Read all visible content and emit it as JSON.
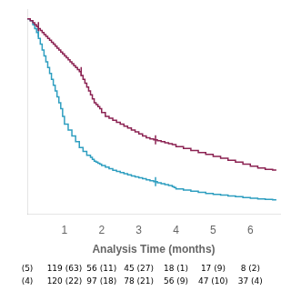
{
  "chart_data": {
    "type": "step",
    "xlabel": "Analysis Time (months)",
    "xlim": [
      0,
      6.8
    ],
    "xticks": [
      1,
      2,
      3,
      4,
      5,
      6
    ],
    "ylim": [
      0,
      1.05
    ],
    "grid": false,
    "tick_labels": "x",
    "series": [
      {
        "color": "#8B2252",
        "x": [
          0.0,
          0.08,
          0.15,
          0.2,
          0.25,
          0.3,
          0.35,
          0.4,
          0.45,
          0.5,
          0.55,
          0.6,
          0.65,
          0.7,
          0.75,
          0.8,
          0.85,
          0.9,
          0.95,
          1.0,
          1.05,
          1.1,
          1.15,
          1.2,
          1.25,
          1.3,
          1.35,
          1.4,
          1.45,
          1.5,
          1.55,
          1.6,
          1.65,
          1.7,
          1.75,
          1.8,
          1.85,
          1.9,
          1.95,
          2.0,
          2.1,
          2.2,
          2.3,
          2.4,
          2.5,
          2.6,
          2.7,
          2.8,
          2.9,
          3.0,
          3.1,
          3.2,
          3.3,
          3.4,
          3.5,
          3.6,
          3.7,
          3.8,
          3.9,
          4.0,
          4.2,
          4.4,
          4.6,
          4.8,
          5.0,
          5.2,
          5.4,
          5.6,
          5.8,
          6.0,
          6.2,
          6.4,
          6.6,
          6.7
        ],
        "values": [
          1.0,
          1.0,
          0.99,
          0.98,
          0.97,
          0.96,
          0.95,
          0.94,
          0.93,
          0.92,
          0.91,
          0.9,
          0.89,
          0.88,
          0.87,
          0.86,
          0.85,
          0.84,
          0.83,
          0.82,
          0.81,
          0.8,
          0.79,
          0.78,
          0.77,
          0.76,
          0.75,
          0.74,
          0.73,
          0.71,
          0.69,
          0.67,
          0.65,
          0.63,
          0.61,
          0.59,
          0.57,
          0.56,
          0.55,
          0.54,
          0.52,
          0.5,
          0.49,
          0.48,
          0.47,
          0.46,
          0.45,
          0.44,
          0.43,
          0.42,
          0.41,
          0.4,
          0.39,
          0.385,
          0.38,
          0.375,
          0.37,
          0.365,
          0.36,
          0.355,
          0.345,
          0.335,
          0.325,
          0.315,
          0.305,
          0.295,
          0.285,
          0.275,
          0.265,
          0.255,
          0.245,
          0.235,
          0.228,
          0.225
        ]
      },
      {
        "color": "#2E9EC0",
        "x": [
          0.0,
          0.08,
          0.15,
          0.2,
          0.25,
          0.3,
          0.35,
          0.4,
          0.45,
          0.5,
          0.55,
          0.6,
          0.65,
          0.7,
          0.75,
          0.8,
          0.85,
          0.9,
          0.95,
          1.0,
          1.1,
          1.2,
          1.3,
          1.4,
          1.5,
          1.6,
          1.7,
          1.75,
          1.8,
          1.85,
          1.9,
          1.95,
          2.0,
          2.1,
          2.2,
          2.3,
          2.4,
          2.5,
          2.6,
          2.7,
          2.8,
          2.9,
          3.0,
          3.1,
          3.2,
          3.3,
          3.4,
          3.5,
          3.6,
          3.7,
          3.8,
          3.9,
          3.95,
          4.0,
          4.2,
          4.4,
          4.6,
          4.8,
          5.0,
          5.2,
          5.4,
          5.6,
          5.8,
          6.0,
          6.2,
          6.4,
          6.6,
          6.7
        ],
        "values": [
          1.0,
          1.0,
          0.99,
          0.97,
          0.95,
          0.93,
          0.9,
          0.87,
          0.84,
          0.81,
          0.78,
          0.75,
          0.72,
          0.69,
          0.66,
          0.63,
          0.6,
          0.57,
          0.54,
          0.5,
          0.46,
          0.43,
          0.4,
          0.37,
          0.34,
          0.32,
          0.3,
          0.29,
          0.28,
          0.27,
          0.265,
          0.26,
          0.255,
          0.248,
          0.24,
          0.232,
          0.224,
          0.218,
          0.212,
          0.206,
          0.2,
          0.195,
          0.19,
          0.185,
          0.18,
          0.175,
          0.17,
          0.165,
          0.16,
          0.155,
          0.15,
          0.145,
          0.14,
          0.135,
          0.128,
          0.122,
          0.116,
          0.11,
          0.105,
          0.1,
          0.096,
          0.092,
          0.088,
          0.084,
          0.08,
          0.077,
          0.074,
          0.072
        ]
      },
      {
        "type": "scatter",
        "marker": "|",
        "color": "#8B2252",
        "x": [
          0.3,
          1.45,
          3.45
        ],
        "values": [
          0.96,
          0.73,
          0.38
        ]
      },
      {
        "type": "scatter",
        "marker": "|",
        "color": "#2E9EC0",
        "x": [
          0.3,
          3.45
        ],
        "values": [
          0.93,
          0.165
        ]
      }
    ],
    "table": {
      "x": [
        0,
        1,
        2,
        3,
        4,
        5,
        6
      ],
      "rows": [
        [
          "(5)",
          "119 (63)",
          "56 (11)",
          "45 (27)",
          "18 (1)",
          "17 (9)",
          "8 (2)"
        ],
        [
          "(4)",
          "120 (22)",
          "97 (18)",
          "78 (21)",
          "56 (9)",
          "47 (10)",
          "37 (4)"
        ]
      ]
    }
  }
}
